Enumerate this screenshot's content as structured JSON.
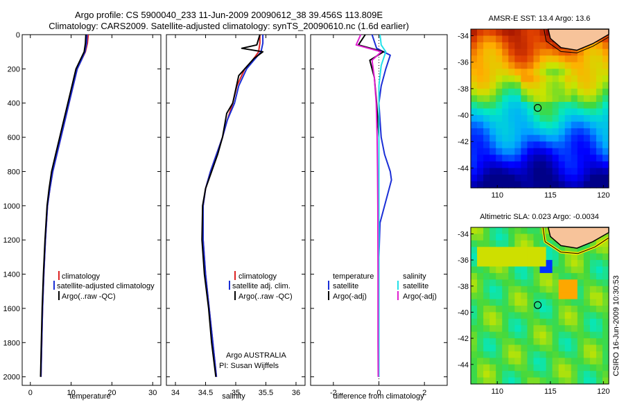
{
  "header": {
    "title_line1": "Argo profile: CS 5900040_233 11-Jun-2009 20090612_38 39.456S 113.809E",
    "title_line2": "Climatology: CARS2009. Satellite-adjusted climatology: synTS_20090610.nc (1.6d earlier)"
  },
  "colors": {
    "climatology": "#dd2222",
    "satellite": "#1a2ed6",
    "argo": "#000000",
    "salinity_satellite": "#22e0e8",
    "salinity_argo": "#e020d0"
  },
  "chart_data": [
    {
      "id": "temperature-profile",
      "type": "line",
      "xlabel": "temperature",
      "ylabel": "",
      "xlim": [
        -2,
        32
      ],
      "ylim": [
        2050,
        0
      ],
      "xticks": [
        0,
        10,
        20,
        30
      ],
      "yticks": [
        0,
        200,
        400,
        600,
        800,
        1000,
        1200,
        1400,
        1600,
        1800,
        2000
      ],
      "legend": [
        "climatology",
        "satellite-adjusted climatology",
        "Argo(..raw -QC)"
      ],
      "series": [
        {
          "name": "climatology",
          "color_key": "climatology",
          "x": [
            14.2,
            14.0,
            13.5,
            12.5,
            11.5,
            10.5,
            9.5,
            8.5,
            7.5,
            6.5,
            5.5,
            4.8,
            4.2,
            3.7,
            3.3,
            3.0,
            2.8,
            2.6
          ],
          "y": [
            0,
            50,
            100,
            150,
            200,
            300,
            400,
            500,
            600,
            700,
            800,
            900,
            1000,
            1200,
            1400,
            1600,
            1800,
            2000
          ]
        },
        {
          "name": "satellite-adjusted climatology",
          "color_key": "satellite",
          "x": [
            13.9,
            13.8,
            13.4,
            12.5,
            11.5,
            10.5,
            9.5,
            8.5,
            7.5,
            6.5,
            5.5,
            4.8,
            4.2,
            3.7,
            3.3,
            3.0,
            2.8,
            2.6
          ],
          "y": [
            0,
            50,
            100,
            150,
            200,
            300,
            400,
            500,
            600,
            700,
            800,
            900,
            1000,
            1200,
            1400,
            1600,
            1800,
            2000
          ]
        },
        {
          "name": "Argo(..raw -QC)",
          "color_key": "argo",
          "x": [
            13.6,
            13.5,
            13.2,
            12.2,
            11.2,
            10.2,
            9.2,
            8.2,
            7.2,
            6.2,
            5.2,
            4.6,
            4.1,
            3.6,
            3.2,
            2.9,
            2.7,
            2.5
          ],
          "y": [
            0,
            50,
            100,
            150,
            200,
            300,
            400,
            500,
            600,
            700,
            800,
            900,
            1000,
            1200,
            1400,
            1600,
            1800,
            2000
          ]
        }
      ]
    },
    {
      "id": "salinity-profile",
      "type": "line",
      "xlabel": "salinity",
      "xlim": [
        33.85,
        36.15
      ],
      "ylim": [
        2050,
        0
      ],
      "xticks": [
        34,
        34.5,
        35,
        35.5,
        36
      ],
      "xtick_labels": [
        "34",
        "34.5",
        "35",
        "35.5",
        "36"
      ],
      "legend": [
        "climatology",
        "satellite adj. clim.",
        "Argo(..raw -QC)"
      ],
      "annotation": [
        "Argo AUSTRALIA",
        "PI: Susan Wijffels"
      ],
      "series": [
        {
          "name": "climatology",
          "color_key": "climatology",
          "x": [
            35.4,
            35.4,
            35.38,
            35.28,
            35.15,
            35.02,
            34.95,
            34.86,
            34.78,
            34.68,
            34.58,
            34.5,
            34.46,
            34.46,
            34.5,
            34.56,
            34.62,
            34.68
          ],
          "y": [
            0,
            50,
            100,
            150,
            200,
            300,
            400,
            500,
            600,
            700,
            800,
            900,
            1000,
            1200,
            1400,
            1600,
            1800,
            2000
          ]
        },
        {
          "name": "satellite adj. clim.",
          "color_key": "satellite",
          "x": [
            35.45,
            35.45,
            35.42,
            35.3,
            35.18,
            35.05,
            34.98,
            34.86,
            34.78,
            34.68,
            34.58,
            34.5,
            34.46,
            34.46,
            34.5,
            34.56,
            34.62,
            34.68
          ],
          "y": [
            0,
            50,
            100,
            150,
            200,
            300,
            400,
            500,
            600,
            700,
            800,
            900,
            1000,
            1200,
            1400,
            1600,
            1800,
            2000
          ]
        },
        {
          "name": "Argo(..raw -QC)",
          "color_key": "argo",
          "x": [
            35.4,
            35.35,
            35.1,
            35.45,
            35.3,
            35.05,
            34.95,
            34.85,
            34.78,
            34.7,
            34.6,
            34.5,
            34.45,
            34.44,
            34.48,
            34.55,
            34.6,
            34.67
          ],
          "y": [
            0,
            60,
            80,
            100,
            140,
            240,
            400,
            460,
            600,
            700,
            800,
            900,
            1000,
            1200,
            1400,
            1600,
            1800,
            2000
          ]
        }
      ]
    },
    {
      "id": "difference-profile",
      "type": "line",
      "xlabel": "difference from climatology",
      "xlim": [
        -3,
        3
      ],
      "ylim": [
        2050,
        0
      ],
      "xticks": [
        -2,
        0,
        2
      ],
      "legend_left": {
        "title": "temperature",
        "items": [
          "satellite",
          "Argo(-adj)"
        ]
      },
      "legend_right": {
        "title": "salinity",
        "items": [
          "satellite",
          "Argo(-adj)"
        ]
      },
      "series": [
        {
          "name": "temperature satellite",
          "color_key": "satellite",
          "x": [
            -0.3,
            -0.1,
            0.5,
            0.3,
            0.1,
            0.0,
            0.05,
            0.1,
            0.25,
            0.5,
            0.55,
            0.45,
            0.25,
            0.05,
            0.0,
            0.0,
            0.0,
            0.0
          ],
          "y": [
            0,
            80,
            120,
            200,
            300,
            400,
            500,
            600,
            700,
            800,
            850,
            900,
            1000,
            1100,
            1300,
            1600,
            1800,
            2000
          ]
        },
        {
          "name": "temperature Argo(-adj)",
          "color_key": "argo",
          "x": [
            -0.6,
            -0.9,
            0.2,
            -0.4,
            -0.2,
            -0.1,
            0.0,
            0.0,
            0.0,
            0.0,
            0.0,
            0.0
          ],
          "y": [
            0,
            60,
            100,
            150,
            250,
            400,
            600,
            800,
            1000,
            1400,
            1800,
            2000
          ]
        },
        {
          "name": "salinity satellite",
          "color_key": "salinity_satellite",
          "x": [
            0.05,
            0.1,
            0.3,
            0.1,
            0.0,
            0.0,
            0.0,
            0.0,
            0.0,
            0.0
          ],
          "y": [
            0,
            60,
            100,
            180,
            300,
            500,
            800,
            1200,
            1600,
            2000
          ]
        },
        {
          "name": "salinity Argo(-adj)",
          "color_key": "salinity_argo",
          "x": [
            -0.8,
            -1.0,
            0.1,
            -0.3,
            -0.2,
            -0.12,
            -0.08,
            -0.06,
            -0.05,
            -0.04,
            -0.04,
            -0.03
          ],
          "y": [
            0,
            60,
            100,
            150,
            250,
            400,
            600,
            800,
            1000,
            1400,
            1800,
            2000
          ]
        }
      ]
    },
    {
      "id": "sst-map",
      "type": "heatmap",
      "title": "AMSR-E SST: 13.4 Argo: 13.6",
      "xlim": [
        107.5,
        120.5
      ],
      "ylim": [
        -45.5,
        -33.5
      ],
      "xticks": [
        110,
        115,
        120
      ],
      "yticks": [
        -34,
        -36,
        -38,
        -40,
        -42,
        -44
      ],
      "marker": {
        "lon": 113.809,
        "lat": -39.456
      }
    },
    {
      "id": "sla-map",
      "type": "heatmap",
      "title": "Altimetric SLA: 0.023 Argo: -0.0034",
      "xlim": [
        107.5,
        120.5
      ],
      "ylim": [
        -45.5,
        -33.5
      ],
      "xticks": [
        110,
        115,
        120
      ],
      "yticks": [
        -34,
        -36,
        -38,
        -40,
        -42,
        -44
      ],
      "marker": {
        "lon": 113.809,
        "lat": -39.456
      }
    }
  ],
  "footer": {
    "credit": "CSIRO 16-Jun-2009 10:30:53"
  }
}
